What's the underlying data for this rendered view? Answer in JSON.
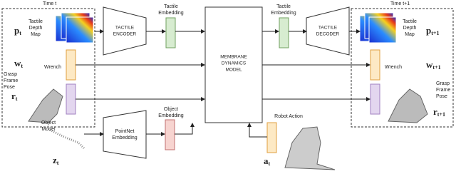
{
  "left_panel": {
    "time_label": "Time t",
    "depth_map_label": [
      "Tactile",
      "Depth",
      "Map"
    ],
    "depth_symbol": {
      "symbol": "p",
      "subscript": "t"
    },
    "wrench_label": "Wrench",
    "wrench_symbol": {
      "symbol": "w",
      "subscript": "t"
    },
    "pose_label": [
      "Grasp",
      "Frame",
      "Pose"
    ],
    "pose_symbol": {
      "symbol": "r",
      "subscript": "t"
    }
  },
  "tactile_encoder": [
    "TACTILE",
    "ENCODER"
  ],
  "tactile_embedding_left": [
    "Tactile",
    "Embedding"
  ],
  "dynamics_model": [
    "MEMBRANE",
    "DYNAMICS",
    "MODEL"
  ],
  "tactile_embedding_right": [
    "Tactile",
    "Embedding"
  ],
  "tactile_decoder": [
    "TACTILE",
    "DECODER"
  ],
  "right_panel": {
    "time_label": "Time t+1",
    "depth_map_label": [
      "Tactile",
      "Depth",
      "Map"
    ],
    "depth_symbol": {
      "symbol": "p",
      "subscript": "t+1"
    },
    "wrench_label": "Wrench",
    "wrench_symbol": {
      "symbol": "w",
      "subscript": "t+1"
    },
    "pose_label": [
      "Grasp",
      "Frame",
      "Pose"
    ],
    "pose_symbol": {
      "symbol": "r",
      "subscript": "t+1"
    }
  },
  "object_model": {
    "label": [
      "Object",
      "Model"
    ],
    "symbol": {
      "symbol": "z",
      "subscript": "t"
    }
  },
  "pointnet": [
    "PointNet",
    "Embedding"
  ],
  "object_embedding": [
    "Object",
    "Embedding"
  ],
  "robot_action": {
    "label": "Robot Action",
    "symbol": {
      "symbol": "a",
      "subscript": "t"
    }
  }
}
